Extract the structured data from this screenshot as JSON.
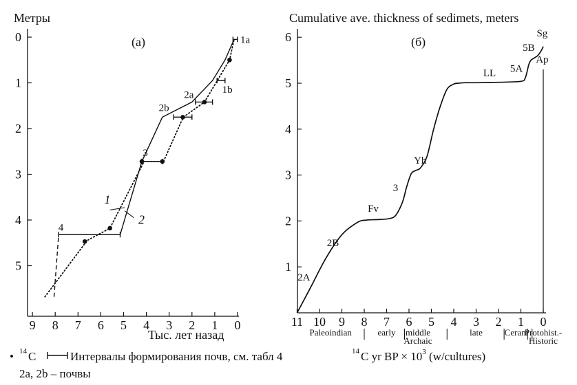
{
  "chart_data": [
    {
      "type": "line",
      "panel_label": "(a)",
      "ylabel": "Метры",
      "xlabel": "Тыс. лет назад",
      "x_ticks": [
        9,
        8,
        7,
        6,
        5,
        4,
        3,
        2,
        1,
        0
      ],
      "y_ticks": [
        0,
        1,
        2,
        3,
        4,
        5
      ],
      "xlim": [
        9.5,
        -0.1
      ],
      "ylim": [
        5.95,
        -0.05
      ],
      "x_reversed": true,
      "y_reversed": true,
      "grid": false,
      "series": [
        {
          "name": "1",
          "style": "dotted",
          "x": [
            8.45,
            6.6,
            5.6,
            4.1,
            3.25,
            2.38,
            1.45,
            0.35,
            0.15
          ],
          "y": [
            5.68,
            4.45,
            4.18,
            2.72,
            2.72,
            1.75,
            1.42,
            0.5,
            0.05
          ]
        },
        {
          "name": "2",
          "style": "solid",
          "x": [
            5.15,
            4.2,
            3.3,
            2.0,
            1.1,
            0.55,
            0.15
          ],
          "y": [
            4.32,
            2.72,
            1.75,
            1.42,
            0.95,
            0.5,
            0.05
          ]
        },
        {
          "name": "",
          "style": "dashed",
          "x": [
            8.05,
            7.85
          ],
          "y": [
            5.68,
            4.32
          ]
        }
      ],
      "c14_points": [
        {
          "x": 6.7,
          "y": 4.47
        },
        {
          "x": 5.6,
          "y": 4.18
        },
        {
          "x": 4.2,
          "y": 2.72
        },
        {
          "x": 3.3,
          "y": 2.72
        },
        {
          "x": 2.4,
          "y": 1.75
        },
        {
          "x": 1.45,
          "y": 1.42
        },
        {
          "x": 0.35,
          "y": 0.5
        }
      ],
      "soil_intervals": [
        {
          "label": "4",
          "y": 4.32,
          "x_from": 7.85,
          "x_to": 5.15
        },
        {
          "label": "3",
          "y": 2.72,
          "x_from": 4.2,
          "x_to": 3.3
        },
        {
          "label": "2b",
          "y": 1.75,
          "x_from": 2.8,
          "x_to": 2.0
        },
        {
          "label": "2a",
          "y": 1.42,
          "x_from": 1.85,
          "x_to": 1.1
        },
        {
          "label": "1b",
          "y": 0.95,
          "x_from": 0.9,
          "x_to": 0.55
        },
        {
          "label": "1a",
          "y": 0.05,
          "x_from": 0.2,
          "x_to": 0.0
        }
      ],
      "annotations": [
        "1",
        "2"
      ]
    },
    {
      "type": "line",
      "panel_label": "(б)",
      "title": "Cumulative ave. thickness of sedimets, meters",
      "xlabel": "14C yr BP × 10^3 (w/cultures)",
      "x_ticks": [
        11,
        10,
        9,
        8,
        7,
        6,
        5,
        4,
        3,
        2,
        1,
        0
      ],
      "y_ticks": [
        1,
        2,
        3,
        4,
        5,
        6
      ],
      "xlim": [
        11,
        -0.15
      ],
      "ylim": [
        0,
        6.15
      ],
      "x_reversed": true,
      "grid": false,
      "series": [
        {
          "name": "",
          "x": [
            11,
            10.4,
            9.7,
            9.0,
            8.3,
            7.9,
            7.4,
            6.9,
            6.6,
            6.3,
            6.1,
            5.9,
            5.7,
            5.5,
            5.2,
            4.9,
            4.6,
            4.3,
            4.0,
            3.8,
            3.5,
            3.0,
            2.0,
            1.0,
            0.8,
            0.65,
            0.55,
            0.4,
            0.25,
            0.1,
            0.0
          ],
          "y": [
            0.0,
            0.55,
            1.2,
            1.7,
            1.97,
            2.02,
            2.03,
            2.05,
            2.12,
            2.4,
            2.75,
            3.03,
            3.1,
            3.15,
            3.4,
            4.0,
            4.5,
            4.87,
            4.98,
            5.0,
            5.01,
            5.01,
            5.02,
            5.04,
            5.12,
            5.4,
            5.5,
            5.55,
            5.6,
            5.7,
            5.8
          ]
        }
      ],
      "unit_labels": [
        {
          "label": "2A",
          "x": 10.7,
          "y": 0.7
        },
        {
          "label": "2B",
          "x": 9.4,
          "y": 1.45
        },
        {
          "label": "Fv",
          "x": 7.6,
          "y": 2.2
        },
        {
          "label": "3",
          "x": 6.6,
          "y": 2.65
        },
        {
          "label": "Yh",
          "x": 5.5,
          "y": 3.25
        },
        {
          "label": "LL",
          "x": 2.4,
          "y": 5.15
        },
        {
          "label": "5A",
          "x": 1.2,
          "y": 5.25
        },
        {
          "label": "5B",
          "x": 0.65,
          "y": 5.7
        },
        {
          "label": "Ap",
          "x": 0.05,
          "y": 5.45
        },
        {
          "label": "Sg",
          "x": 0.05,
          "y": 6.02
        }
      ],
      "cultures": [
        {
          "label": "Paleoindian",
          "x": 9.5,
          "lines": [
            "Paleoindian"
          ]
        },
        {
          "label": "early",
          "x": 7.0,
          "lines": [
            "early"
          ]
        },
        {
          "label": "middle Archaic",
          "x": 5.6,
          "lines": [
            "middle",
            "Archaic"
          ]
        },
        {
          "label": "late",
          "x": 3.0,
          "lines": [
            "late"
          ]
        },
        {
          "label": "Ceram",
          "x": 1.2,
          "lines": [
            "Ceram"
          ]
        },
        {
          "label": "Protohist.-Historic",
          "x": 0.0,
          "lines": [
            "Protohist.-",
            "Historic"
          ]
        }
      ],
      "culture_dividers": [
        8.0,
        6.2,
        4.3,
        1.75,
        0.7,
        0.5
      ],
      "vertical_marker_x": 0.0
    }
  ],
  "legend": {
    "bullet": "•",
    "c14": "C",
    "c14_sup": "14",
    "intervals": "Интервалы формирования почв, см. табл 4",
    "soils": "2a, 2b – почвы",
    "xlabel_b_main": "C yr BP × 10",
    "xlabel_b_sup1": "14",
    "xlabel_b_sup2": "3",
    "xlabel_b_suffix": " (w/cultures)"
  }
}
